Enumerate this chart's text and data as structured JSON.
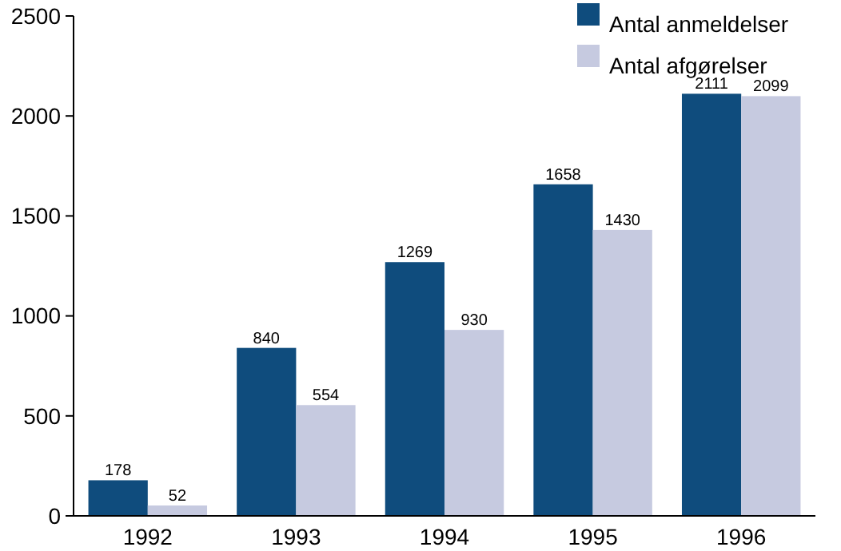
{
  "chart_data": {
    "type": "bar",
    "categories": [
      "1992",
      "1993",
      "1994",
      "1995",
      "1996"
    ],
    "series": [
      {
        "name": "Antal anmeldelser",
        "color": "#0f4c7d",
        "values": [
          178,
          840,
          1269,
          1658,
          2111
        ]
      },
      {
        "name": "Antal afgørelser",
        "color": "#c6cae0",
        "values": [
          52,
          554,
          930,
          1430,
          2099
        ]
      }
    ],
    "ylim": [
      0,
      2500
    ],
    "yticks": [
      0,
      500,
      1000,
      1500,
      2000,
      2500
    ],
    "data_labels": true,
    "legend": "top right"
  }
}
